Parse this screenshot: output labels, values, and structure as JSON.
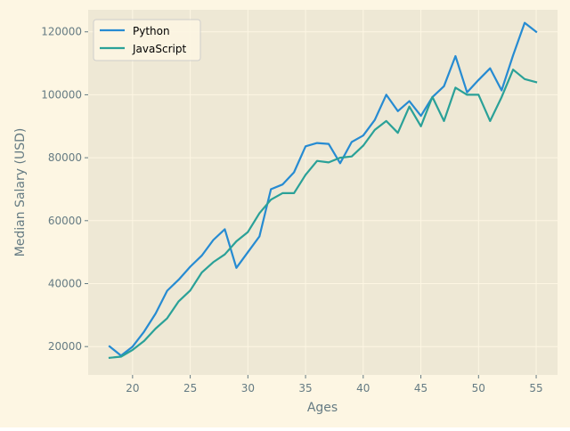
{
  "chart_data": {
    "type": "line",
    "xlabel": "Ages",
    "ylabel": "Median Salary (USD)",
    "xlim": [
      16.15,
      56.85
    ],
    "ylim": [
      11000,
      127000
    ],
    "xticks": [
      20,
      25,
      30,
      35,
      40,
      45,
      50,
      55
    ],
    "yticks": [
      20000,
      40000,
      60000,
      80000,
      100000,
      120000
    ],
    "grid": true,
    "legend": "top-left",
    "x": [
      18,
      19,
      20,
      21,
      22,
      23,
      24,
      25,
      26,
      27,
      28,
      29,
      30,
      31,
      32,
      33,
      34,
      35,
      36,
      37,
      38,
      39,
      40,
      41,
      42,
      43,
      44,
      45,
      46,
      47,
      48,
      49,
      50,
      51,
      52,
      53,
      54,
      55
    ],
    "series": [
      {
        "name": "Python",
        "color": "#268bd2",
        "values": [
          20046,
          17100,
          20000,
          24744,
          30500,
          37732,
          41247,
          45372,
          48876,
          53850,
          57287,
          45000,
          50000,
          55000,
          70000,
          71496,
          75370,
          83640,
          84666,
          84392,
          78254,
          85000,
          87038,
          91991,
          100000,
          94796,
          97962,
          93302,
          99240,
          102736,
          112285,
          100771,
          104708,
          108423,
          101407,
          112542,
          122870,
          120000
        ]
      },
      {
        "name": "JavaScript",
        "color": "#2aa198",
        "values": [
          16446,
          16791,
          18942,
          21780,
          25704,
          29000,
          34372,
          37810,
          43515,
          46823,
          49293,
          53437,
          56373,
          62375,
          66674,
          68745,
          68746,
          74583,
          79000,
          78508,
          79996,
          80403,
          83820,
          88833,
          91660,
          87892,
          96243,
          90000,
          99313,
          91660,
          102264,
          100000,
          100000,
          91660,
          99240,
          108000,
          105000,
          104000
        ]
      }
    ]
  }
}
